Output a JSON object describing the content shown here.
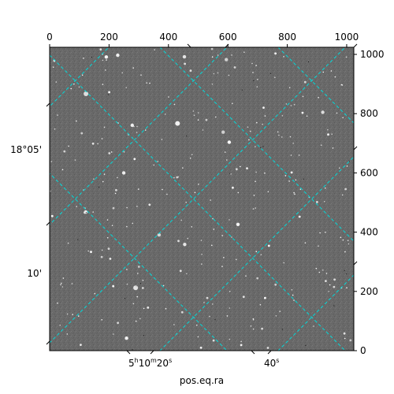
{
  "chart_data": {
    "type": "image",
    "xlabel": "pos.eq.ra",
    "ylabel": "",
    "pixel_axes": {
      "xlim": [
        0,
        1024
      ],
      "ylim": [
        0,
        1024
      ],
      "x_ticks": [
        0,
        200,
        400,
        600,
        800,
        1000
      ],
      "y_ticks": [
        0,
        200,
        400,
        600,
        800,
        1000
      ]
    },
    "wcs_axes": {
      "ra_labels": [
        {
          "label": "5h10m20s",
          "display_main": "5",
          "display_unit": "h",
          "display_min": "10",
          "display_min_unit": "m",
          "display_sec": "20",
          "display_sec_unit": "s"
        },
        {
          "label": "40s",
          "display_main": "40",
          "display_unit": "s"
        }
      ],
      "dec_labels": [
        "18°05'",
        "10'"
      ]
    },
    "grid": true,
    "colors": {
      "grid": "#00d9d9",
      "background": "#6b6b6b",
      "frame": "#000000"
    }
  }
}
